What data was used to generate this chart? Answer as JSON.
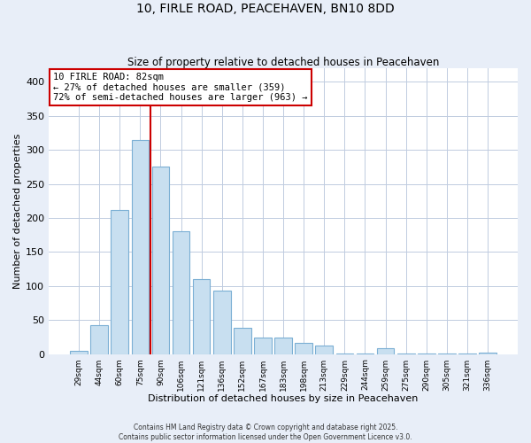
{
  "title1": "10, FIRLE ROAD, PEACEHAVEN, BN10 8DD",
  "title2": "Size of property relative to detached houses in Peacehaven",
  "xlabel": "Distribution of detached houses by size in Peacehaven",
  "ylabel": "Number of detached properties",
  "categories": [
    "29sqm",
    "44sqm",
    "60sqm",
    "75sqm",
    "90sqm",
    "106sqm",
    "121sqm",
    "136sqm",
    "152sqm",
    "167sqm",
    "183sqm",
    "198sqm",
    "213sqm",
    "229sqm",
    "244sqm",
    "259sqm",
    "275sqm",
    "290sqm",
    "305sqm",
    "321sqm",
    "336sqm"
  ],
  "values": [
    5,
    43,
    212,
    315,
    275,
    180,
    110,
    93,
    38,
    24,
    24,
    16,
    13,
    1,
    1,
    8,
    1,
    1,
    1,
    1,
    2
  ],
  "bar_color": "#c8dff0",
  "bar_edge_color": "#7bafd4",
  "vline_x": 3.5,
  "vline_color": "#cc0000",
  "annotation_title": "10 FIRLE ROAD: 82sqm",
  "annotation_line1": "← 27% of detached houses are smaller (359)",
  "annotation_line2": "72% of semi-detached houses are larger (963) →",
  "annotation_box_color": "#ffffff",
  "annotation_box_edge": "#cc0000",
  "ylim": [
    0,
    420
  ],
  "yticks": [
    0,
    50,
    100,
    150,
    200,
    250,
    300,
    350,
    400
  ],
  "footnote1": "Contains HM Land Registry data © Crown copyright and database right 2025.",
  "footnote2": "Contains public sector information licensed under the Open Government Licence v3.0.",
  "bg_color": "#e8eef8",
  "plot_bg_color": "#ffffff",
  "grid_color": "#c0cce0"
}
